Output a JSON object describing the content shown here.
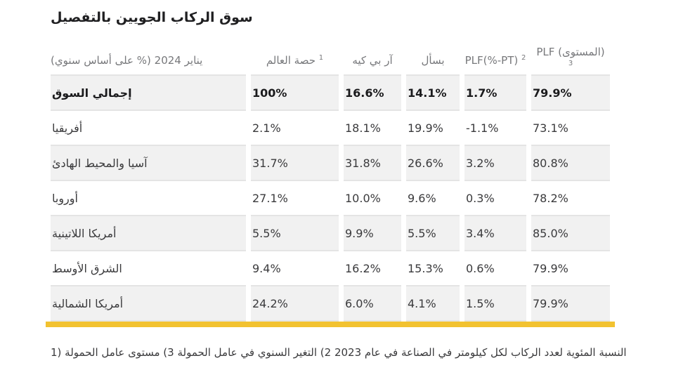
{
  "title": "سوق الركاب الجويين بالتفصيل",
  "chart_data": {
    "type": "table",
    "columns": [
      {
        "label": "يناير 2024 (% على أساس سنوي)",
        "sup": ""
      },
      {
        "label": "حصة العالم",
        "sup": "1"
      },
      {
        "label": "آر بي كيه",
        "sup": ""
      },
      {
        "label": "بسأل",
        "sup": ""
      },
      {
        "label": "PLF(%-PT)",
        "sup": "2"
      },
      {
        "label": "PLF (المستوى)",
        "sup": "3"
      }
    ],
    "rows": [
      {
        "label": "إجمالي السوق",
        "bold": true,
        "values": [
          "100%",
          "16.6%",
          "14.1%",
          "1.7%",
          "79.9%"
        ]
      },
      {
        "label": "أفريقيا",
        "bold": false,
        "values": [
          "2.1%",
          "18.1%",
          "19.9%",
          "-1.1%",
          "73.1%"
        ]
      },
      {
        "label": "آسيا والمحيط الهادئ",
        "bold": false,
        "values": [
          "31.7%",
          "31.8%",
          "26.6%",
          "3.2%",
          "80.8%"
        ]
      },
      {
        "label": "أوروبا",
        "bold": false,
        "values": [
          "27.1%",
          "10.0%",
          "9.6%",
          "0.3%",
          "78.2%"
        ]
      },
      {
        "label": "أمريكا اللاتينية",
        "bold": false,
        "values": [
          "5.5%",
          "9.9%",
          "5.5%",
          "3.4%",
          "85.0%"
        ]
      },
      {
        "label": "الشرق الأوسط",
        "bold": false,
        "values": [
          "9.4%",
          "16.2%",
          "15.3%",
          "0.6%",
          "79.9%"
        ]
      },
      {
        "label": "أمريكا الشمالية",
        "bold": false,
        "values": [
          "24.2%",
          "6.0%",
          "4.1%",
          "1.5%",
          "79.9%"
        ]
      }
    ]
  },
  "footnote": "1) النسبة المئوية لعدد الركاب لكل كيلومتر في الصناعة في عام 2023 2) التغير السنوي في عامل الحمولة 3) مستوى عامل الحمولة",
  "colors": {
    "accent_yellow": "#F2C230",
    "zebra_row": "#F1F1F1",
    "header_text": "#77787B",
    "body_text": "#3A3A3C",
    "separator": "#E4E4E4",
    "title_text": "#1F1F21"
  }
}
